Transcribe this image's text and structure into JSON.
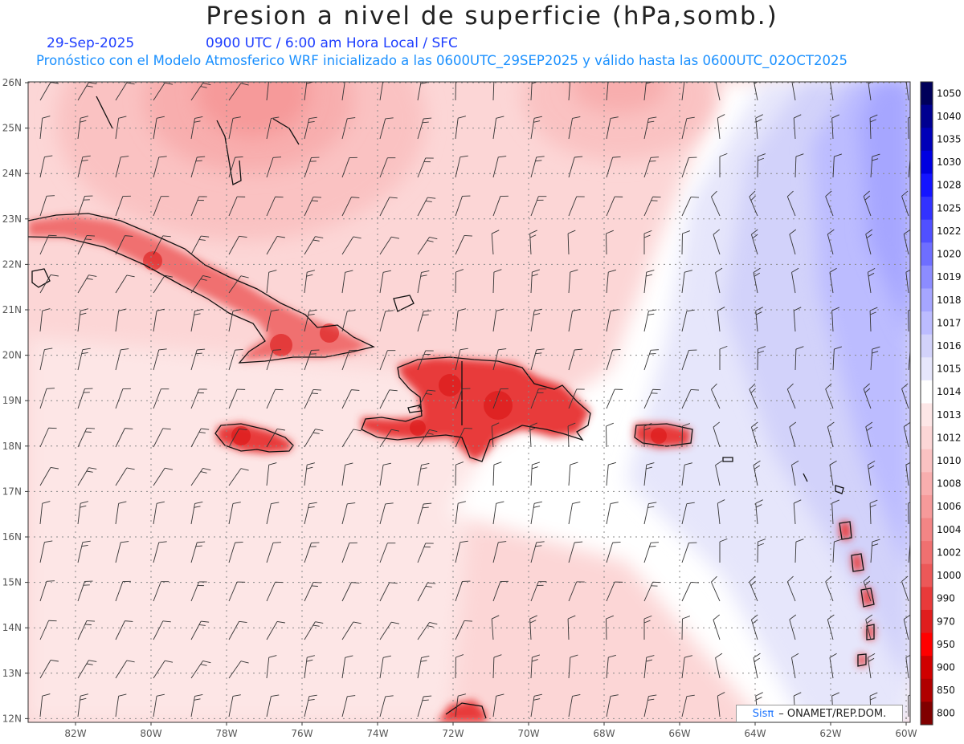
{
  "title": "Presion a nivel de superficie (hPa,somb.)",
  "date": "29-Sep-2025",
  "time_line": "0900 UTC / 6:00 am Hora Local / SFC",
  "model_line": "Pronóstico con el Modelo Atmosferico WRF inicializado a las 0600UTC_29SEP2025 y válido hasta las  0600UTC_02OCT2025",
  "lat_labels": [
    "26N",
    "25N",
    "24N",
    "23N",
    "22N",
    "21N",
    "20N",
    "19N",
    "18N",
    "17N",
    "16N",
    "15N",
    "14N",
    "13N",
    "12N"
  ],
  "lon_labels": [
    "82W",
    "80W",
    "78W",
    "76W",
    "74W",
    "72W",
    "70W",
    "68W",
    "66W",
    "64W",
    "62W",
    "60W"
  ],
  "colorbar": {
    "levels": [
      "1050",
      "1040",
      "1035",
      "1030",
      "1028",
      "1025",
      "1022",
      "1020",
      "1019",
      "1018",
      "1017",
      "1016",
      "1015",
      "1014",
      "1013",
      "1012",
      "1010",
      "1008",
      "1006",
      "1004",
      "1002",
      "1000",
      "990",
      "970",
      "950",
      "900",
      "850",
      "800"
    ],
    "colors": [
      "#00005a",
      "#000090",
      "#0000b8",
      "#0000e0",
      "#1414ff",
      "#3232ff",
      "#5050ff",
      "#6e6eff",
      "#8c8cff",
      "#a6a6ff",
      "#bcbcff",
      "#d2d2fa",
      "#e6e6fb",
      "#ffffff",
      "#fde6e6",
      "#fcd6d6",
      "#fac2c2",
      "#f8aeae",
      "#f69a9a",
      "#f38585",
      "#f07070",
      "#ec5858",
      "#e83a3a",
      "#e01e1e",
      "#ff0000",
      "#d00000",
      "#b00000",
      "#800000"
    ]
  },
  "credit": {
    "brand": "Sisπ",
    "text": "– ONAMET/REP.DOM."
  }
}
